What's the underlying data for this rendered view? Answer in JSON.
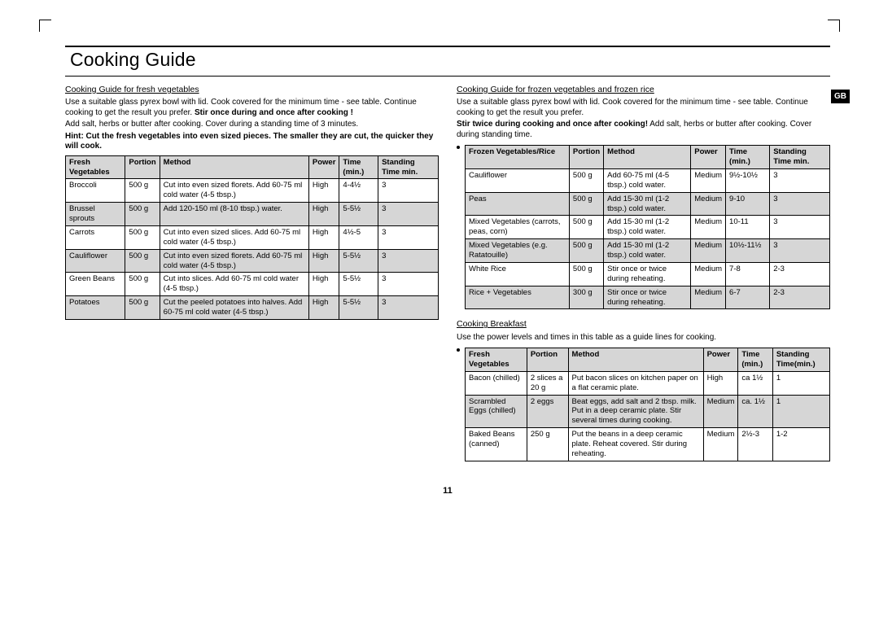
{
  "page": {
    "title": "Cooking Guide",
    "region_tag": "GB",
    "page_number": "11"
  },
  "left": {
    "heading": "Cooking Guide for fresh vegetables",
    "intro1": "Use a suitable glass pyrex bowl with lid. Cook covered for the minimum time - see table. Continue cooking to get the result you prefer. ",
    "intro_bold": "Stir once during and once after cooking !",
    "intro2": "Add salt, herbs or butter after cooking. Cover during a standing time of 3 minutes.",
    "hint_bold": "Hint: Cut the fresh vegetables into even sized pieces. The smaller they are cut, the quicker they will cook.",
    "table": {
      "headers": [
        "Fresh Vegetables",
        "Portion",
        "Method",
        "Power",
        "Time (min.)",
        "Standing Time min."
      ],
      "rows": [
        {
          "shade": false,
          "cells": [
            "Broccoli",
            "500 g",
            "Cut into even sized florets. Add 60-75 ml cold water (4-5 tbsp.)",
            "High",
            "4-4½",
            "3"
          ]
        },
        {
          "shade": true,
          "cells": [
            "Brussel sprouts",
            "500 g",
            "Add 120-150 ml (8-10 tbsp.) water.",
            "High",
            "5-5½",
            "3"
          ]
        },
        {
          "shade": false,
          "cells": [
            "Carrots",
            "500 g",
            "Cut into even sized slices. Add 60-75 ml cold water (4-5 tbsp.)",
            "High",
            "4½-5",
            "3"
          ]
        },
        {
          "shade": true,
          "cells": [
            "Cauliflower",
            "500 g",
            "Cut into even sized florets. Add 60-75 ml cold water (4-5 tbsp.)",
            "High",
            "5-5½",
            "3"
          ]
        },
        {
          "shade": false,
          "cells": [
            "Green Beans",
            "500 g",
            "Cut into slices. Add 60-75 ml cold water (4-5 tbsp.)",
            "High",
            "5-5½",
            "3"
          ]
        },
        {
          "shade": true,
          "cells": [
            "Potatoes",
            "500 g",
            "Cut the peeled potatoes into halves. Add 60-75 ml cold water (4-5 tbsp.)",
            "High",
            "5-5½",
            "3"
          ]
        }
      ]
    }
  },
  "right": {
    "heading": "Cooking Guide for frozen vegetables and frozen rice",
    "intro1": "Use a suitable glass pyrex bowl with lid. Cook covered for the minimum time - see table. Continue cooking to get the result you prefer.",
    "intro_bold": "Stir twice during cooking and once after cooking!",
    "intro2": " Add salt, herbs or butter after cooking. Cover during standing time.",
    "table": {
      "headers": [
        "Frozen Vegetables/Rice",
        "Portion",
        "Method",
        "Power",
        "Time (min.)",
        "Standing Time min."
      ],
      "rows": [
        {
          "shade": false,
          "cells": [
            "Cauliflower",
            "500 g",
            "Add 60-75 ml (4-5 tbsp.) cold water.",
            "Medium",
            "9½-10½",
            "3"
          ]
        },
        {
          "shade": true,
          "cells": [
            "Peas",
            "500 g",
            "Add 15-30 ml (1-2 tbsp.) cold water.",
            "Medium",
            "9-10",
            "3"
          ]
        },
        {
          "shade": false,
          "cells": [
            "Mixed Vegetables (carrots, peas, corn)",
            "500 g",
            "Add 15-30 ml (1-2 tbsp.) cold water.",
            "Medium",
            "10-11",
            "3"
          ]
        },
        {
          "shade": true,
          "cells": [
            "Mixed Vegetables (e.g. Ratatouille)",
            "500 g",
            "Add 15-30 ml (1-2 tbsp.) cold water.",
            "Medium",
            "10½-11½",
            "3"
          ]
        },
        {
          "shade": false,
          "cells": [
            "White Rice",
            "500 g",
            "Stir once or twice during reheating.",
            "Medium",
            "7-8",
            "2-3"
          ]
        },
        {
          "shade": true,
          "cells": [
            "Rice + Vegetables",
            "300 g",
            "Stir once or twice during reheating.",
            "Medium",
            "6-7",
            "2-3"
          ]
        }
      ]
    },
    "breakfast_heading": "Cooking Breakfast",
    "breakfast_intro": "Use the power levels and times in this table as a guide lines for cooking.",
    "breakfast_table": {
      "headers": [
        "Fresh Vegetables",
        "Portion",
        "Method",
        "Power",
        "Time (min.)",
        "Standing Time(min.)"
      ],
      "rows": [
        {
          "shade": false,
          "cells": [
            "Bacon (chilled)",
            "2 slices a 20 g",
            "Put bacon slices on kitchen paper on a flat ceramic plate.",
            "High",
            "ca 1½",
            "1"
          ]
        },
        {
          "shade": true,
          "cells": [
            "Scrambled Eggs (chilled)",
            "2 eggs",
            "Beat eggs, add salt and 2 tbsp. milk. Put in a deep ceramic plate. Stir several times during cooking.",
            "Medium",
            "ca. 1½",
            "1"
          ]
        },
        {
          "shade": false,
          "cells": [
            "Baked Beans (canned)",
            "250 g",
            "Put the beans in a deep ceramic plate. Reheat covered. Stir during reheating.",
            "Medium",
            "2½-3",
            "1-2"
          ]
        }
      ]
    }
  }
}
